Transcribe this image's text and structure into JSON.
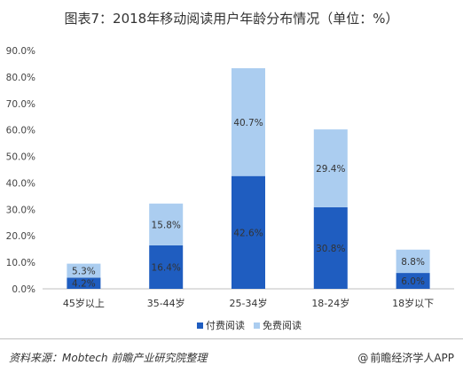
{
  "title": "图表7：2018年移动阅读用户年龄分布情况（单位：%）",
  "chart_data": {
    "type": "bar",
    "stacked": true,
    "categories": [
      "45岁以上",
      "35-44岁",
      "25-34岁",
      "18-24岁",
      "18岁以下"
    ],
    "series": [
      {
        "name": "付费阅读",
        "color": "#1f5dc0",
        "values": [
          4.2,
          16.4,
          42.6,
          30.8,
          6.0
        ],
        "labels": [
          "4.2%",
          "16.4%",
          "42.6%",
          "30.8%",
          "6.0%"
        ]
      },
      {
        "name": "免费阅读",
        "color": "#abcdf0",
        "values": [
          5.3,
          15.8,
          40.7,
          29.4,
          8.8
        ],
        "labels": [
          "5.3%",
          "15.8%",
          "40.7%",
          "29.4%",
          "8.8%"
        ]
      }
    ],
    "ylim": [
      0,
      90
    ],
    "yticks": [
      "0.0%",
      "10.0%",
      "20.0%",
      "30.0%",
      "40.0%",
      "50.0%",
      "60.0%",
      "70.0%",
      "80.0%",
      "90.0%"
    ],
    "grid": false,
    "legend": "bottom"
  },
  "footer": {
    "source": "资料来源：Mobtech 前瞻产业研究院整理",
    "brand_at": "@",
    "brand": "前瞻经济学人APP"
  }
}
